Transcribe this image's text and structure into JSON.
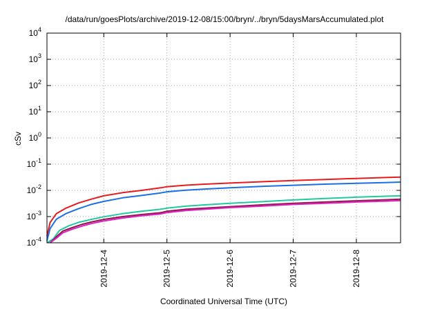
{
  "chart_data": {
    "type": "line",
    "title": "/data/run/goesPlots/archive/2019-12-08/15:00/bryn/../bryn/5daysMarsAccumulated.plot",
    "xlabel": "Coordinated Universal Time (UTC)",
    "ylabel": "cSv",
    "yscale": "log",
    "ylim": [
      0.0001,
      10000
    ],
    "xlim": [
      3.1,
      8.7
    ],
    "x_ticks": [
      {
        "value": 4,
        "label": "2019-12-4"
      },
      {
        "value": 5,
        "label": "2019-12-5"
      },
      {
        "value": 6,
        "label": "2019-12-6"
      },
      {
        "value": 7,
        "label": "2019-12-7"
      },
      {
        "value": 8,
        "label": "2019-12-8"
      }
    ],
    "y_ticks": [
      {
        "value": 0.0001,
        "base": "10",
        "exp": "-4"
      },
      {
        "value": 0.001,
        "base": "10",
        "exp": "-3"
      },
      {
        "value": 0.01,
        "base": "10",
        "exp": "-2"
      },
      {
        "value": 0.1,
        "base": "10",
        "exp": "-1"
      },
      {
        "value": 1,
        "base": "10",
        "exp": "0"
      },
      {
        "value": 10,
        "base": "10",
        "exp": "1"
      },
      {
        "value": 100,
        "base": "10",
        "exp": "2"
      },
      {
        "value": 1000,
        "base": "10",
        "exp": "3"
      },
      {
        "value": 10000,
        "base": "10",
        "exp": "4"
      }
    ],
    "grid": true,
    "legend": "none",
    "series": [
      {
        "color": "#e8191c",
        "x": [
          3.1,
          3.15,
          3.25,
          3.4,
          3.6,
          3.8,
          4.0,
          4.3,
          4.6,
          4.9,
          5.0,
          5.3,
          5.6,
          6.0,
          6.5,
          7.0,
          7.5,
          8.0,
          8.5,
          8.7
        ],
        "y": [
          0.00018,
          0.0006,
          0.0013,
          0.0021,
          0.0033,
          0.0046,
          0.0062,
          0.0082,
          0.01,
          0.0125,
          0.0138,
          0.0158,
          0.0172,
          0.019,
          0.0213,
          0.0237,
          0.026,
          0.0285,
          0.031,
          0.032
        ]
      },
      {
        "color": "#1a6fe8",
        "x": [
          3.1,
          3.15,
          3.25,
          3.4,
          3.6,
          3.8,
          4.0,
          4.3,
          4.6,
          4.9,
          5.0,
          5.3,
          5.6,
          6.0,
          6.5,
          7.0,
          7.5,
          8.0,
          8.5,
          8.7
        ],
        "y": [
          0.00012,
          0.00035,
          0.0008,
          0.0013,
          0.002,
          0.0029,
          0.0038,
          0.0052,
          0.0064,
          0.008,
          0.0088,
          0.0102,
          0.0112,
          0.0125,
          0.0142,
          0.0157,
          0.0172,
          0.0186,
          0.02,
          0.0207
        ]
      },
      {
        "color": "#20c8a0",
        "x": [
          3.1,
          3.2,
          3.3,
          3.45,
          3.6,
          3.8,
          4.0,
          4.3,
          4.6,
          4.9,
          5.0,
          5.3,
          5.6,
          6.0,
          6.5,
          7.0,
          7.5,
          8.0,
          8.5,
          8.7
        ],
        "y": [
          0.0001,
          0.00014,
          0.0003,
          0.00045,
          0.0006,
          0.00078,
          0.00098,
          0.0013,
          0.0016,
          0.0019,
          0.0021,
          0.0025,
          0.0028,
          0.0032,
          0.0037,
          0.0043,
          0.0049,
          0.0055,
          0.006,
          0.0062
        ]
      },
      {
        "color": "#8a1a4a",
        "x": [
          3.15,
          3.25,
          3.35,
          3.5,
          3.65,
          3.8,
          4.0,
          4.3,
          4.6,
          4.9,
          5.0,
          5.3,
          5.6,
          6.0,
          6.5,
          7.0,
          7.5,
          8.0,
          8.5,
          8.7
        ],
        "y": [
          0.0001,
          0.00017,
          0.00028,
          0.00038,
          0.0005,
          0.00062,
          0.00078,
          0.001,
          0.0012,
          0.0014,
          0.0016,
          0.0019,
          0.0021,
          0.0024,
          0.0028,
          0.0032,
          0.0036,
          0.004,
          0.0044,
          0.0046
        ]
      },
      {
        "color": "#e020c0",
        "x": [
          3.15,
          3.25,
          3.35,
          3.5,
          3.65,
          3.8,
          4.0,
          4.3,
          4.6,
          4.9,
          5.0,
          5.3,
          5.6,
          6.0,
          6.5,
          7.0,
          7.5,
          8.0,
          8.5,
          8.7
        ],
        "y": [
          0.0001,
          0.00015,
          0.00024,
          0.00033,
          0.00043,
          0.00054,
          0.00068,
          0.00088,
          0.00108,
          0.00126,
          0.00142,
          0.0017,
          0.0019,
          0.0022,
          0.0025,
          0.0029,
          0.0032,
          0.0036,
          0.0039,
          0.0041
        ]
      }
    ]
  }
}
